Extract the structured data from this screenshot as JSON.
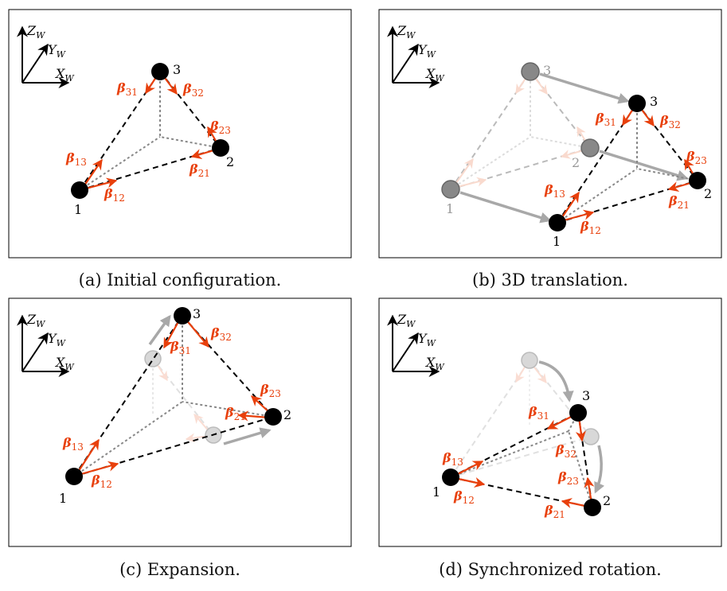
{
  "captions": {
    "a": "(a) Initial configuration.",
    "b": "(b) 3D translation.",
    "c": "(c) Expansion.",
    "d": "(d) Synchronized rotation."
  },
  "axes": {
    "z": "Z",
    "y": "Y",
    "x": "X",
    "sub": "W"
  },
  "nodes": {
    "n1": "1",
    "n2": "2",
    "n3": "3"
  },
  "beta": {
    "sym": "β",
    "b12": "12",
    "b13": "13",
    "b21": "21",
    "b23": "23",
    "b31": "31",
    "b32": "32"
  },
  "colors": {
    "bearing": "#e8400c",
    "node": "#000000",
    "ghost": "#a8a8a8",
    "edge": "#000000"
  }
}
